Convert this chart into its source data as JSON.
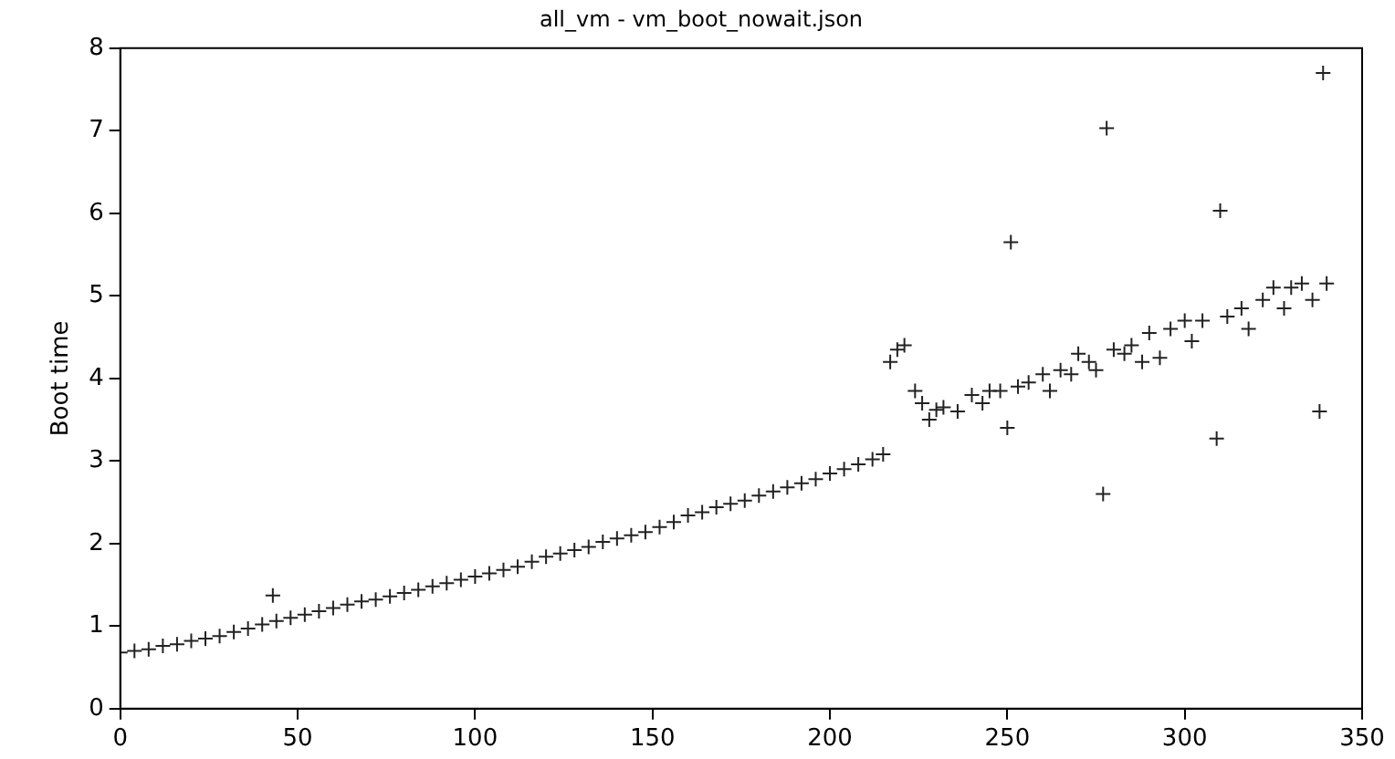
{
  "chart_data": {
    "type": "scatter",
    "title": "all_vm - vm_boot_nowait.json",
    "ylabel": "Boot time",
    "marker": "cross",
    "legend": false,
    "grid": false,
    "xlim": [
      0,
      350
    ],
    "xticks": [
      0,
      50,
      100,
      150,
      200,
      250,
      300,
      350
    ],
    "ylim": [
      0,
      8
    ],
    "yticks": [
      0,
      1,
      2,
      3,
      4,
      5,
      6,
      7,
      8
    ],
    "series": [
      {
        "color": "#222222",
        "x": [
          0,
          4,
          8,
          12,
          16,
          20,
          24,
          28,
          32,
          36,
          40,
          43,
          44,
          48,
          52,
          56,
          60,
          64,
          68,
          72,
          76,
          80,
          84,
          88,
          92,
          96,
          100,
          104,
          108,
          112,
          116,
          120,
          124,
          128,
          132,
          136,
          140,
          144,
          148,
          152,
          156,
          160,
          164,
          168,
          172,
          176,
          180,
          184,
          188,
          192,
          196,
          200,
          204,
          208,
          212,
          215,
          217,
          219,
          221,
          224,
          226,
          228,
          230,
          232,
          236,
          240,
          243,
          245,
          248,
          250,
          251,
          253,
          256,
          260,
          262,
          265,
          268,
          270,
          273,
          275,
          277,
          278,
          280,
          283,
          285,
          288,
          290,
          293,
          296,
          300,
          302,
          305,
          309,
          310,
          312,
          316,
          318,
          322,
          325,
          328,
          330,
          333,
          336,
          338,
          339,
          340
        ],
        "values": [
          0.68,
          0.7,
          0.72,
          0.76,
          0.78,
          0.82,
          0.85,
          0.88,
          0.93,
          0.97,
          1.02,
          1.37,
          1.06,
          1.1,
          1.14,
          1.18,
          1.22,
          1.26,
          1.3,
          1.32,
          1.36,
          1.4,
          1.44,
          1.48,
          1.52,
          1.56,
          1.6,
          1.64,
          1.68,
          1.72,
          1.78,
          1.84,
          1.88,
          1.92,
          1.96,
          2.02,
          2.06,
          2.1,
          2.14,
          2.2,
          2.26,
          2.34,
          2.38,
          2.44,
          2.48,
          2.52,
          2.58,
          2.63,
          2.68,
          2.73,
          2.78,
          2.85,
          2.9,
          2.96,
          3.02,
          3.08,
          4.2,
          4.35,
          4.4,
          3.85,
          3.7,
          3.5,
          3.62,
          3.65,
          3.6,
          3.8,
          3.7,
          3.85,
          3.85,
          3.4,
          5.65,
          3.9,
          3.95,
          4.05,
          3.85,
          4.1,
          4.05,
          4.3,
          4.2,
          4.1,
          2.6,
          7.03,
          4.35,
          4.3,
          4.4,
          4.2,
          4.55,
          4.25,
          4.6,
          4.7,
          4.45,
          4.7,
          3.27,
          6.03,
          4.75,
          4.85,
          4.6,
          4.95,
          5.1,
          4.85,
          5.1,
          5.15,
          4.95,
          3.6,
          7.7,
          5.15
        ]
      }
    ]
  }
}
